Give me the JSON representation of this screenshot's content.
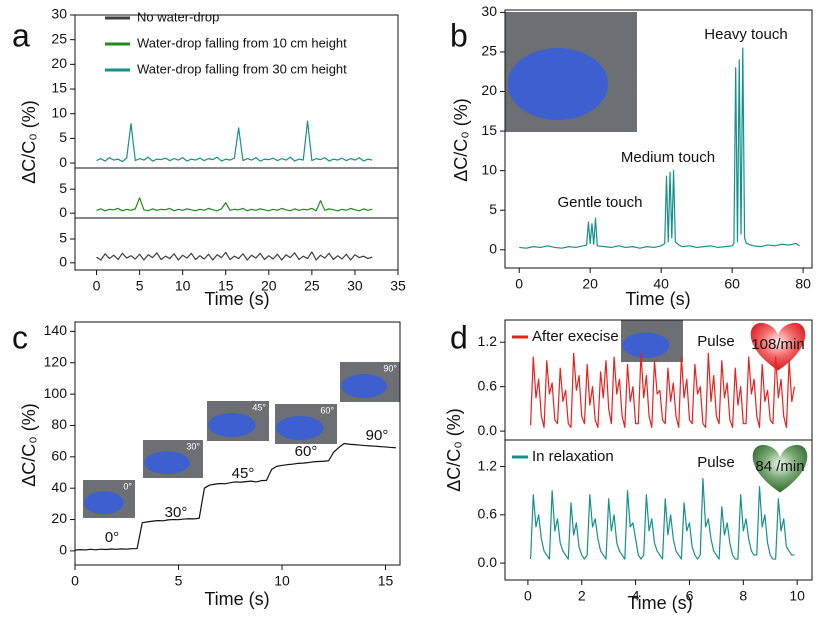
{
  "chart_data": [
    {
      "type": "line",
      "label": "a",
      "x_label": "Time (s)",
      "y_label": "ΔC/C₀ (%)",
      "legend": "upper left",
      "xlim": [
        -2.5,
        35
      ],
      "xticks": [
        0,
        5,
        10,
        15,
        20,
        25,
        30,
        35
      ],
      "x": [
        0,
        0.5,
        1,
        1.5,
        2,
        2.5,
        3,
        3.5,
        4,
        4.5,
        5,
        5.5,
        6,
        6.5,
        7,
        7.5,
        8,
        8.5,
        9,
        9.5,
        10,
        10.5,
        11,
        11.5,
        12,
        12.5,
        13,
        13.5,
        14,
        14.5,
        15,
        15.5,
        16,
        16.5,
        17,
        17.5,
        18,
        18.5,
        19,
        19.5,
        20,
        20.5,
        21,
        21.5,
        22,
        22.5,
        23,
        23.5,
        24,
        24.5,
        25,
        25.5,
        26,
        26.5,
        27,
        27.5,
        28,
        28.5,
        29,
        29.5,
        30,
        30.5,
        31,
        31.5,
        32
      ],
      "subplots": [
        {
          "ylim": [
            -1,
            30
          ],
          "yticks": [
            0,
            5,
            10,
            15,
            20,
            25,
            30
          ],
          "series": [
            {
              "name": "Water-drop falling from 30 cm height",
              "color": "#15908c",
              "values": [
                0.5,
                0.9,
                0.4,
                1.1,
                0.6,
                0.8,
                0.3,
                1.0,
                8.0,
                0.5,
                0.9,
                0.6,
                1.2,
                0.4,
                0.8,
                0.7,
                1.0,
                0.5,
                0.9,
                0.6,
                1.1,
                0.4,
                0.8,
                0.6,
                1.0,
                0.5,
                0.9,
                0.7,
                1.2,
                0.4,
                0.8,
                0.6,
                1.0,
                7.1,
                0.5,
                0.9,
                0.6,
                1.1,
                0.4,
                0.8,
                0.7,
                1.0,
                0.5,
                0.9,
                0.6,
                1.2,
                0.4,
                0.8,
                0.6,
                8.5,
                0.5,
                0.9,
                0.7,
                1.1,
                0.4,
                0.8,
                0.6,
                1.0,
                0.5,
                0.9,
                0.6,
                1.1,
                0.4,
                0.8,
                0.6
              ]
            }
          ]
        },
        {
          "ylim": [
            -1,
            9.4
          ],
          "yticks": [
            0,
            5
          ],
          "series": [
            {
              "name": "Water-drop falling from 10 cm height",
              "color": "#1e8c1e",
              "values": [
                0.6,
                0.9,
                0.5,
                0.8,
                0.7,
                1.0,
                0.5,
                0.8,
                0.6,
                0.9,
                3.2,
                0.7,
                0.5,
                0.9,
                0.6,
                0.8,
                0.7,
                1.0,
                0.5,
                0.8,
                0.6,
                0.9,
                0.7,
                0.5,
                0.8,
                0.6,
                1.0,
                0.7,
                0.5,
                0.9,
                2.2,
                0.6,
                0.8,
                0.7,
                1.0,
                0.5,
                0.8,
                0.6,
                0.9,
                0.7,
                0.5,
                0.8,
                0.6,
                1.0,
                0.7,
                0.5,
                0.9,
                0.6,
                0.8,
                0.7,
                1.0,
                0.5,
                2.6,
                0.6,
                0.9,
                0.7,
                0.5,
                0.8,
                0.6,
                1.0,
                0.7,
                0.5,
                0.9,
                0.6,
                0.8
              ]
            }
          ]
        },
        {
          "ylim": [
            -1.5,
            9.4
          ],
          "yticks": [
            0,
            5
          ],
          "series": [
            {
              "name": "No water-drop",
              "color": "#3f3f3f",
              "values": [
                1.2,
                0.6,
                1.9,
                0.9,
                1.6,
                0.7,
                2.0,
                1.0,
                1.5,
                0.8,
                1.8,
                0.6,
                1.7,
                1.1,
                2.1,
                0.7,
                1.4,
                0.9,
                1.9,
                0.6,
                1.6,
                1.0,
                2.0,
                0.7,
                1.5,
                0.8,
                1.8,
                0.6,
                1.7,
                1.1,
                2.2,
                0.7,
                1.4,
                0.9,
                1.9,
                0.6,
                1.6,
                1.0,
                2.0,
                0.7,
                1.5,
                0.8,
                1.8,
                0.6,
                1.7,
                1.1,
                2.1,
                0.7,
                1.4,
                0.9,
                2.3,
                0.6,
                1.6,
                1.0,
                2.0,
                0.7,
                1.5,
                0.8,
                1.8,
                0.6,
                1.7,
                1.1,
                1.4,
                0.9,
                1.2
              ]
            }
          ]
        }
      ],
      "legend_order": [
        2,
        1,
        0
      ]
    },
    {
      "type": "line",
      "label": "b",
      "x_label": "Time (s)",
      "y_label": "ΔC/C₀ (%)",
      "xlim": [
        -4,
        82.5
      ],
      "xticks": [
        0,
        20,
        40,
        60,
        80
      ],
      "x": [
        0,
        2,
        4,
        6,
        8,
        10,
        12,
        14,
        16,
        18,
        19,
        19.5,
        20,
        20.5,
        21,
        21.5,
        22,
        24,
        26,
        28,
        30,
        32,
        34,
        36,
        38,
        40,
        41,
        41.5,
        42,
        42.5,
        43,
        43.5,
        44,
        45,
        46,
        48,
        50,
        52,
        54,
        56,
        58,
        60,
        60.5,
        61,
        61.5,
        62,
        62.5,
        63,
        63.5,
        64,
        66,
        68,
        70,
        72,
        74,
        76,
        78,
        79
      ],
      "subplots": [
        {
          "ylim": [
            -2.3,
            30.3
          ],
          "yticks": [
            0,
            5,
            10,
            15,
            20,
            25,
            30
          ],
          "series": [
            {
              "color": "#15908c",
              "values": [
                0.3,
                0.2,
                0.4,
                0.3,
                0.5,
                0.3,
                0.2,
                0.4,
                0.3,
                0.5,
                0.6,
                3.5,
                0.8,
                3.3,
                0.7,
                4.0,
                0.5,
                0.4,
                0.3,
                0.5,
                0.3,
                0.4,
                0.2,
                0.4,
                0.3,
                0.5,
                0.8,
                9.3,
                1.0,
                9.8,
                1.5,
                10.0,
                1.0,
                0.6,
                0.4,
                0.5,
                0.3,
                0.4,
                0.5,
                0.3,
                0.4,
                0.5,
                0.8,
                23.0,
                1.0,
                24.0,
                2.0,
                25.5,
                1.5,
                0.8,
                0.5,
                0.4,
                0.6,
                0.5,
                0.7,
                0.6,
                0.8,
                0.5
              ]
            }
          ]
        }
      ],
      "annotations": [
        "Gentle touch",
        "Medium touch",
        "Heavy touch"
      ]
    },
    {
      "type": "line",
      "label": "c",
      "x_label": "Time (s)",
      "y_label": "ΔC/C₀ (%)",
      "xlim": [
        0,
        15.7
      ],
      "xticks": [
        0,
        5,
        10,
        15
      ],
      "x": [
        0,
        0.25,
        0.5,
        0.75,
        1,
        1.25,
        1.5,
        1.75,
        2,
        2.25,
        2.5,
        2.75,
        3,
        3.25,
        3.5,
        3.75,
        4,
        4.25,
        4.5,
        4.75,
        5,
        5.25,
        5.5,
        5.75,
        6,
        6.25,
        6.5,
        6.75,
        7,
        7.25,
        7.5,
        7.75,
        8,
        8.25,
        8.5,
        8.75,
        9,
        9.25,
        9.5,
        9.75,
        10,
        10.25,
        10.5,
        10.75,
        11,
        11.25,
        11.5,
        11.75,
        12,
        12.25,
        12.5,
        12.75,
        13,
        13.25,
        13.5,
        13.75,
        14,
        14.25,
        14.5,
        14.75,
        15,
        15.25,
        15.5
      ],
      "subplots": [
        {
          "ylim": [
            -9,
            146
          ],
          "yticks": [
            0,
            20,
            40,
            60,
            80,
            100,
            120,
            140
          ],
          "series": [
            {
              "color": "#111111",
              "values": [
                0.5,
                0.8,
                0.6,
                1.0,
                0.7,
                1.1,
                0.9,
                1.2,
                1.0,
                1.3,
                1.1,
                1.4,
                1.5,
                18.0,
                18.5,
                19.0,
                19.3,
                19.2,
                19.8,
                20.0,
                19.9,
                20.3,
                20.5,
                20.4,
                20.8,
                40.0,
                42.0,
                42.5,
                43.0,
                42.8,
                43.5,
                44.0,
                43.8,
                44.2,
                44.5,
                44.0,
                44.8,
                45.0,
                52.0,
                54.0,
                54.5,
                55.0,
                55.3,
                55.8,
                56.0,
                56.3,
                56.8,
                57.0,
                57.2,
                57.5,
                63.0,
                66.0,
                68.5,
                68.0,
                67.8,
                67.5,
                67.2,
                67.0,
                66.8,
                66.5,
                66.3,
                66.0,
                65.8
              ]
            }
          ]
        }
      ],
      "annotations": [
        "0°",
        "30°",
        "45°",
        "60°",
        "90°"
      ],
      "inset_labels": [
        "0°",
        "30°",
        "45°",
        "60°",
        "90°"
      ]
    },
    {
      "type": "line",
      "label": "d",
      "x_label": "Time (s)",
      "y_label": "ΔC/C₀ (%)",
      "xlim": [
        -0.85,
        10.55
      ],
      "xticks": [
        0,
        2,
        4,
        6,
        8,
        10
      ],
      "x": [
        0.1,
        0.2,
        0.3,
        0.4,
        0.5,
        0.6,
        0.7,
        0.8,
        0.9,
        1.0,
        1.1,
        1.2,
        1.3,
        1.4,
        1.5,
        1.6,
        1.7,
        1.8,
        1.9,
        2.0,
        2.1,
        2.2,
        2.3,
        2.4,
        2.5,
        2.6,
        2.7,
        2.8,
        2.9,
        3.0,
        3.1,
        3.2,
        3.3,
        3.4,
        3.5,
        3.6,
        3.7,
        3.8,
        3.9,
        4.0,
        4.1,
        4.2,
        4.3,
        4.4,
        4.5,
        4.6,
        4.7,
        4.8,
        4.9,
        5.0,
        5.1,
        5.2,
        5.3,
        5.4,
        5.5,
        5.6,
        5.7,
        5.8,
        5.9,
        6.0,
        6.1,
        6.2,
        6.3,
        6.4,
        6.5,
        6.6,
        6.7,
        6.8,
        6.9,
        7.0,
        7.1,
        7.2,
        7.3,
        7.4,
        7.5,
        7.6,
        7.7,
        7.8,
        7.9,
        8.0,
        8.1,
        8.2,
        8.3,
        8.4,
        8.5,
        8.6,
        8.7,
        8.8,
        8.9,
        9.0,
        9.1,
        9.2,
        9.3,
        9.4,
        9.5,
        9.6,
        9.7,
        9.8,
        9.9
      ],
      "subplots": [
        {
          "ylim": [
            -0.12,
            1.5
          ],
          "yticks": [
            {
              "value": 0,
              "label": "0.0"
            },
            0.6,
            1.2
          ],
          "legend": "upper left",
          "series": [
            {
              "name": "After execise",
              "color": "#e8201e",
              "values": [
                0.08,
                1.0,
                0.45,
                0.7,
                0.2,
                0.05,
                0.95,
                0.5,
                0.65,
                0.15,
                0.1,
                0.85,
                0.4,
                0.55,
                0.1,
                0.05,
                1.05,
                0.55,
                0.75,
                0.2,
                0.1,
                0.9,
                0.35,
                0.6,
                0.15,
                0.05,
                0.8,
                0.45,
                0.95,
                0.3,
                0.1,
                1.0,
                0.5,
                0.7,
                0.2,
                0.05,
                0.9,
                0.4,
                0.6,
                0.1,
                0.1,
                1.05,
                0.45,
                0.75,
                0.2,
                0.05,
                0.95,
                0.5,
                0.55,
                0.15,
                0.1,
                0.85,
                0.4,
                0.65,
                0.2,
                0.05,
                1.0,
                0.45,
                0.7,
                0.15,
                0.1,
                0.9,
                0.5,
                0.6,
                0.1,
                0.05,
                1.05,
                0.4,
                0.75,
                0.2,
                0.1,
                0.95,
                0.45,
                0.65,
                0.15,
                0.05,
                0.85,
                0.35,
                0.6,
                0.1,
                0.1,
                1.0,
                0.5,
                0.7,
                0.2,
                0.05,
                0.9,
                0.4,
                0.55,
                0.15,
                0.1,
                1.0,
                0.45,
                0.7,
                0.2,
                0.05,
                0.95,
                0.4,
                0.6
              ]
            }
          ]
        },
        {
          "ylim": [
            -0.21,
            1.53
          ],
          "yticks": [
            {
              "value": 0,
              "label": "0.0"
            },
            0.6,
            1.2
          ],
          "legend": "upper left",
          "series": [
            {
              "name": "In relaxation",
              "color": "#15908c",
              "values": [
                0.05,
                0.85,
                0.45,
                0.6,
                0.3,
                0.15,
                0.1,
                0.05,
                0.9,
                0.4,
                0.55,
                0.25,
                0.15,
                0.1,
                0.05,
                0.75,
                0.35,
                0.5,
                0.2,
                0.1,
                0.05,
                0.1,
                0.85,
                0.45,
                0.55,
                0.3,
                0.15,
                0.1,
                0.05,
                0.8,
                0.4,
                0.6,
                0.25,
                0.15,
                0.1,
                0.05,
                0.9,
                0.45,
                0.5,
                0.3,
                0.1,
                0.05,
                0.1,
                0.85,
                0.4,
                0.55,
                0.25,
                0.15,
                0.1,
                0.05,
                0.8,
                0.35,
                0.6,
                0.3,
                0.15,
                0.1,
                0.05,
                0.75,
                0.4,
                0.5,
                0.2,
                0.1,
                0.05,
                0.1,
                1.05,
                0.45,
                0.55,
                0.3,
                0.15,
                0.1,
                0.05,
                0.7,
                0.35,
                0.5,
                0.25,
                0.1,
                0.05,
                0.05,
                0.85,
                0.4,
                0.55,
                0.3,
                0.15,
                0.1,
                0.1,
                0.95,
                0.45,
                0.6,
                0.25,
                0.1,
                0.05,
                0.05,
                0.8,
                0.4,
                0.55,
                0.2,
                0.15,
                0.1,
                0.1
              ]
            }
          ]
        }
      ],
      "annotations": [
        "Pulse",
        "108/min",
        "Pulse",
        "84 /min"
      ]
    }
  ]
}
